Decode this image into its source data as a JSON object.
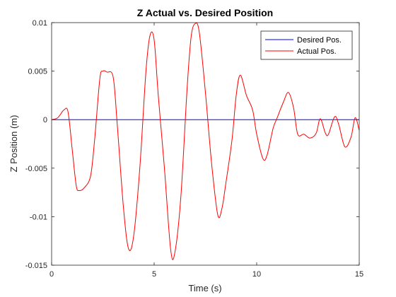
{
  "chart_data": {
    "type": "line",
    "title": "Z Actual vs. Desired Position",
    "xlabel": "Time (s)",
    "ylabel": "Z Position (m)",
    "xlim": [
      0,
      15
    ],
    "ylim": [
      -0.015,
      0.01
    ],
    "xticks": [
      0,
      5,
      10,
      15
    ],
    "xtick_labels": [
      "0",
      "5",
      "10",
      "15"
    ],
    "yticks": [
      -0.015,
      -0.01,
      -0.005,
      0,
      0.005,
      0.01
    ],
    "ytick_labels": [
      "-0.015",
      "-0.01",
      "-0.005",
      "0",
      "0.005",
      "0.01"
    ],
    "grid": false,
    "legend_position": "top-right",
    "series": [
      {
        "name": "Desired Pos.",
        "color": "#0000ff",
        "x": [
          0,
          15
        ],
        "y": [
          0,
          0
        ]
      },
      {
        "name": "Actual Pos.",
        "color": "#ff0000",
        "x": [
          0,
          0.3,
          0.6,
          0.8,
          1.0,
          1.2,
          1.35,
          1.6,
          1.9,
          2.1,
          2.35,
          2.5,
          2.7,
          3.0,
          3.2,
          3.5,
          3.75,
          4.0,
          4.3,
          4.6,
          4.8,
          5.0,
          5.2,
          5.5,
          5.8,
          6.0,
          6.3,
          6.6,
          6.8,
          7.0,
          7.2,
          7.5,
          7.8,
          8.1,
          8.3,
          8.5,
          8.8,
          9.0,
          9.2,
          9.5,
          9.8,
          10.0,
          10.3,
          10.5,
          10.8,
          11.0,
          11.3,
          11.55,
          11.8,
          12.0,
          12.3,
          12.6,
          12.9,
          13.1,
          13.35,
          13.5,
          13.8,
          14.0,
          14.3,
          14.6,
          14.8,
          15.0
        ],
        "y": [
          0,
          0.0002,
          0.001,
          0.0008,
          -0.003,
          -0.0068,
          -0.0073,
          -0.007,
          -0.0058,
          -0.002,
          0.0042,
          0.005,
          0.0049,
          0.0044,
          -0.0005,
          -0.009,
          -0.0133,
          -0.012,
          -0.005,
          0.005,
          0.0087,
          0.0082,
          0.0025,
          -0.005,
          -0.0133,
          -0.0138,
          -0.008,
          0.003,
          0.0085,
          0.0099,
          0.009,
          0.0028,
          -0.0045,
          -0.0098,
          -0.0092,
          -0.0065,
          -0.002,
          0.0025,
          0.0046,
          0.0025,
          0.001,
          -0.0015,
          -0.004,
          -0.0037,
          -0.0009,
          0.0002,
          0.0018,
          0.0028,
          0.0012,
          -0.0015,
          -0.0015,
          -0.0019,
          -0.0014,
          0.0001,
          -0.0014,
          -0.0015,
          0.0003,
          -0.0005,
          -0.0028,
          -0.0018,
          0.0002,
          -0.0011
        ]
      }
    ]
  }
}
